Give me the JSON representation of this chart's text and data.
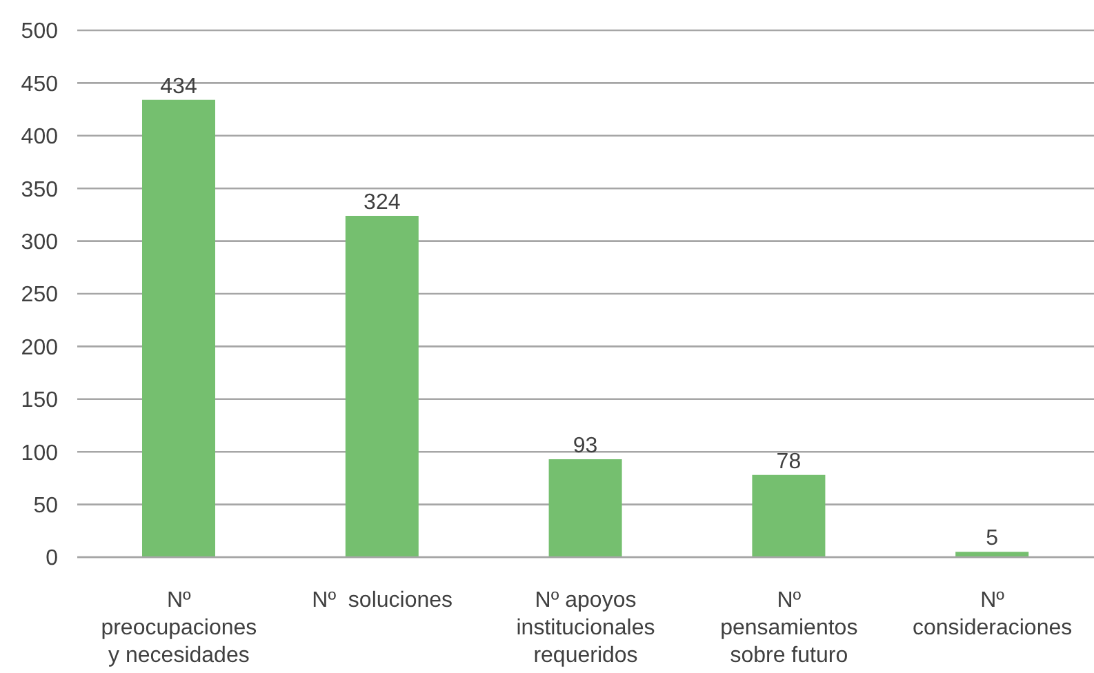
{
  "chart_data": {
    "type": "bar",
    "categories": [
      "Nº preocupaciones y necesidades",
      "Nº  soluciones",
      "Nº apoyos institucionales requeridos",
      "Nº pensamientos sobre futuro",
      "Nº consideraciones"
    ],
    "values": [
      434,
      324,
      93,
      78,
      5
    ],
    "color": "#75bf6f",
    "ylim": [
      0,
      500
    ],
    "yticks": [
      0,
      50,
      100,
      150,
      200,
      250,
      300,
      350,
      400,
      450,
      500
    ],
    "grid": "y",
    "data_labels": true
  }
}
